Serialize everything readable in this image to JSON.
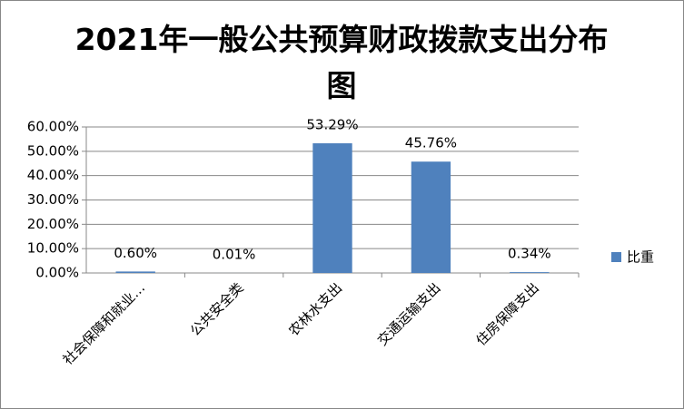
{
  "chart_data": {
    "type": "bar",
    "title": "2021年一般公共预算财政拨款支出分布图",
    "categories": [
      "社会保障和就业…",
      "公共安全类",
      "农林水支出",
      "交通运输支出",
      "住房保障支出"
    ],
    "series": [
      {
        "name": "比重",
        "color": "#4f81bd",
        "values": [
          0.6,
          0.01,
          53.29,
          45.76,
          0.34
        ],
        "value_labels": [
          "0.60%",
          "0.01%",
          "53.29%",
          "45.76%",
          "0.34%"
        ]
      }
    ],
    "ylim": [
      0,
      60
    ],
    "yticks": [
      {
        "value": 0,
        "label": "0.00%"
      },
      {
        "value": 10,
        "label": "10.00%"
      },
      {
        "value": 20,
        "label": "20.00%"
      },
      {
        "value": 30,
        "label": "30.00%"
      },
      {
        "value": 40,
        "label": "40.00%"
      },
      {
        "value": 50,
        "label": "50.00%"
      },
      {
        "value": 60,
        "label": "60.00%"
      }
    ],
    "grid": true,
    "legend": "right"
  }
}
